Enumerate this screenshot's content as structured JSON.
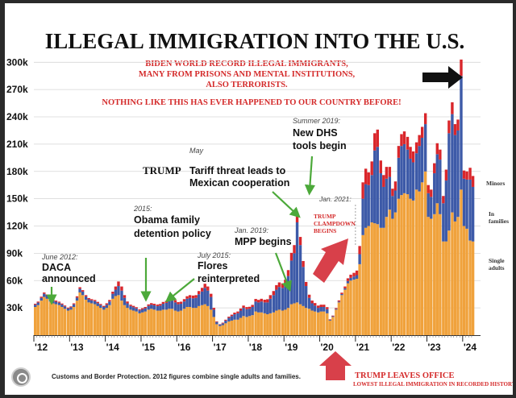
{
  "chart_data": {
    "type": "bar",
    "stacked": true,
    "title": "ILLEGAL IMMIGRATION INTO THE U.S.",
    "subtitle_lines": [
      "BIDEN WORLD RECORD ILLEGAL IMMIGRANTS,",
      "MANY FROM PRISONS AND MENTAL INSTITUTIONS,",
      "ALSO TERRORISTS."
    ],
    "subtitle2": "NOTHING LIKE THIS HAS EVER HAPPENED TO OUR COUNTRY BEFORE!",
    "ylim": [
      0,
      310000
    ],
    "yticks": [
      30000,
      60000,
      90000,
      120000,
      150000,
      180000,
      210000,
      240000,
      270000,
      300000
    ],
    "ytick_labels": [
      "30k",
      "60k",
      "90k",
      "120k",
      "150k",
      "180k",
      "210k",
      "240k",
      "270k",
      "300k"
    ],
    "xlim": [
      2012.0,
      2024.5
    ],
    "xticks": [
      2012,
      2013,
      2014,
      2015,
      2016,
      2017,
      2018,
      2019,
      2020,
      2021,
      2022,
      2023,
      2024
    ],
    "xtick_labels": [
      "'12",
      "'13",
      "'14",
      "'15",
      "'16",
      "'17",
      "'18",
      "'19",
      "'20",
      "'21",
      "'22",
      "'23",
      "'24"
    ],
    "series": [
      {
        "name": "Single adults",
        "color": "#f0a23c"
      },
      {
        "name": "In families",
        "color": "#3d5aa8"
      },
      {
        "name": "Minors",
        "color": "#d9262b"
      }
    ],
    "monthly": [
      {
        "t": 2012.0,
        "v": [
          31000,
          2500,
          1000
        ]
      },
      {
        "t": 2012.08,
        "v": [
          33000,
          2800,
          1100
        ]
      },
      {
        "t": 2012.17,
        "v": [
          38000,
          3000,
          1300
        ]
      },
      {
        "t": 2012.25,
        "v": [
          42000,
          3500,
          1400
        ]
      },
      {
        "t": 2012.33,
        "v": [
          40000,
          3400,
          1300
        ]
      },
      {
        "t": 2012.42,
        "v": [
          37000,
          3000,
          1200
        ]
      },
      {
        "t": 2012.5,
        "v": [
          35000,
          2900,
          1200
        ]
      },
      {
        "t": 2012.58,
        "v": [
          34000,
          2800,
          1200
        ]
      },
      {
        "t": 2012.67,
        "v": [
          33000,
          2700,
          1100
        ]
      },
      {
        "t": 2012.75,
        "v": [
          31000,
          2700,
          1100
        ]
      },
      {
        "t": 2012.83,
        "v": [
          29000,
          2600,
          1000
        ]
      },
      {
        "t": 2012.92,
        "v": [
          27000,
          2400,
          900
        ]
      },
      {
        "t": 2013.0,
        "v": [
          28000,
          2600,
          1000
        ]
      },
      {
        "t": 2013.08,
        "v": [
          31000,
          2900,
          1100
        ]
      },
      {
        "t": 2013.17,
        "v": [
          38000,
          3300,
          1400
        ]
      },
      {
        "t": 2013.25,
        "v": [
          47000,
          4000,
          1700
        ]
      },
      {
        "t": 2013.33,
        "v": [
          44000,
          3900,
          1600
        ]
      },
      {
        "t": 2013.42,
        "v": [
          39000,
          3600,
          1400
        ]
      },
      {
        "t": 2013.5,
        "v": [
          36000,
          3400,
          1400
        ]
      },
      {
        "t": 2013.58,
        "v": [
          35000,
          3300,
          1300
        ]
      },
      {
        "t": 2013.67,
        "v": [
          34000,
          3400,
          1300
        ]
      },
      {
        "t": 2013.75,
        "v": [
          32000,
          3300,
          1300
        ]
      },
      {
        "t": 2013.83,
        "v": [
          30000,
          3100,
          1200
        ]
      },
      {
        "t": 2013.92,
        "v": [
          28000,
          3000,
          1200
        ]
      },
      {
        "t": 2014.0,
        "v": [
          30000,
          3500,
          1500
        ]
      },
      {
        "t": 2014.08,
        "v": [
          33000,
          4000,
          1700
        ]
      },
      {
        "t": 2014.17,
        "v": [
          40000,
          5500,
          2300
        ]
      },
      {
        "t": 2014.25,
        "v": [
          43000,
          7000,
          3500
        ]
      },
      {
        "t": 2014.33,
        "v": [
          44000,
          10000,
          5000
        ]
      },
      {
        "t": 2014.42,
        "v": [
          38000,
          11000,
          4500
        ]
      },
      {
        "t": 2014.5,
        "v": [
          33000,
          8000,
          3000
        ]
      },
      {
        "t": 2014.58,
        "v": [
          30000,
          5000,
          2000
        ]
      },
      {
        "t": 2014.67,
        "v": [
          28000,
          4000,
          1500
        ]
      },
      {
        "t": 2014.75,
        "v": [
          27000,
          3800,
          1400
        ]
      },
      {
        "t": 2014.83,
        "v": [
          26000,
          3500,
          1300
        ]
      },
      {
        "t": 2014.92,
        "v": [
          24000,
          3200,
          1200
        ]
      },
      {
        "t": 2015.0,
        "v": [
          25000,
          3300,
          1300
        ]
      },
      {
        "t": 2015.08,
        "v": [
          26000,
          3600,
          1400
        ]
      },
      {
        "t": 2015.17,
        "v": [
          28000,
          4200,
          1600
        ]
      },
      {
        "t": 2015.25,
        "v": [
          29000,
          4500,
          1700
        ]
      },
      {
        "t": 2015.33,
        "v": [
          28000,
          4800,
          1700
        ]
      },
      {
        "t": 2015.42,
        "v": [
          27000,
          5000,
          1700
        ]
      },
      {
        "t": 2015.5,
        "v": [
          27000,
          5500,
          1800
        ]
      },
      {
        "t": 2015.58,
        "v": [
          28000,
          6500,
          2000
        ]
      },
      {
        "t": 2015.67,
        "v": [
          28000,
          7500,
          2300
        ]
      },
      {
        "t": 2015.75,
        "v": [
          29000,
          8500,
          2500
        ]
      },
      {
        "t": 2015.83,
        "v": [
          29000,
          9000,
          2700
        ]
      },
      {
        "t": 2015.92,
        "v": [
          27000,
          9000,
          2500
        ]
      },
      {
        "t": 2016.0,
        "v": [
          26000,
          8000,
          2300
        ]
      },
      {
        "t": 2016.08,
        "v": [
          27000,
          7500,
          2300
        ]
      },
      {
        "t": 2016.17,
        "v": [
          29000,
          8000,
          2600
        ]
      },
      {
        "t": 2016.25,
        "v": [
          31000,
          9000,
          2800
        ]
      },
      {
        "t": 2016.33,
        "v": [
          31000,
          10000,
          3000
        ]
      },
      {
        "t": 2016.42,
        "v": [
          30000,
          10500,
          3000
        ]
      },
      {
        "t": 2016.5,
        "v": [
          30000,
          11000,
          3000
        ]
      },
      {
        "t": 2016.58,
        "v": [
          32000,
          13000,
          3500
        ]
      },
      {
        "t": 2016.67,
        "v": [
          33000,
          15000,
          4000
        ]
      },
      {
        "t": 2016.75,
        "v": [
          34000,
          18000,
          4500
        ]
      },
      {
        "t": 2016.83,
        "v": [
          32000,
          17000,
          4500
        ]
      },
      {
        "t": 2016.92,
        "v": [
          28000,
          14000,
          3500
        ]
      },
      {
        "t": 2017.0,
        "v": [
          20000,
          8000,
          2000
        ]
      },
      {
        "t": 2017.08,
        "v": [
          12000,
          2500,
          700
        ]
      },
      {
        "t": 2017.17,
        "v": [
          10000,
          1500,
          500
        ]
      },
      {
        "t": 2017.25,
        "v": [
          11000,
          2000,
          700
        ]
      },
      {
        "t": 2017.33,
        "v": [
          13000,
          3000,
          1000
        ]
      },
      {
        "t": 2017.42,
        "v": [
          15000,
          4000,
          1300
        ]
      },
      {
        "t": 2017.5,
        "v": [
          16000,
          5000,
          1500
        ]
      },
      {
        "t": 2017.58,
        "v": [
          17000,
          6000,
          1800
        ]
      },
      {
        "t": 2017.67,
        "v": [
          17000,
          7000,
          2000
        ]
      },
      {
        "t": 2017.75,
        "v": [
          19000,
          8000,
          2300
        ]
      },
      {
        "t": 2017.83,
        "v": [
          21000,
          9000,
          2500
        ]
      },
      {
        "t": 2017.92,
        "v": [
          20000,
          8500,
          2400
        ]
      },
      {
        "t": 2018.0,
        "v": [
          21000,
          8000,
          2200
        ]
      },
      {
        "t": 2018.08,
        "v": [
          22000,
          9000,
          2300
        ]
      },
      {
        "t": 2018.17,
        "v": [
          26000,
          11000,
          2800
        ]
      },
      {
        "t": 2018.25,
        "v": [
          25000,
          11000,
          2800
        ]
      },
      {
        "t": 2018.33,
        "v": [
          25000,
          12000,
          3000
        ]
      },
      {
        "t": 2018.42,
        "v": [
          24000,
          12000,
          3000
        ]
      },
      {
        "t": 2018.5,
        "v": [
          23000,
          13000,
          3500
        ]
      },
      {
        "t": 2018.58,
        "v": [
          24000,
          16000,
          4000
        ]
      },
      {
        "t": 2018.67,
        "v": [
          25000,
          19000,
          4500
        ]
      },
      {
        "t": 2018.75,
        "v": [
          27000,
          23000,
          5000
        ]
      },
      {
        "t": 2018.83,
        "v": [
          28000,
          25000,
          5000
        ]
      },
      {
        "t": 2018.92,
        "v": [
          27000,
          25000,
          5000
        ]
      },
      {
        "t": 2019.0,
        "v": [
          28000,
          28000,
          5000
        ]
      },
      {
        "t": 2019.08,
        "v": [
          30000,
          35000,
          6500
        ]
      },
      {
        "t": 2019.17,
        "v": [
          34000,
          48000,
          8500
        ]
      },
      {
        "t": 2019.25,
        "v": [
          35000,
          55000,
          9000
        ]
      },
      {
        "t": 2019.33,
        "v": [
          36000,
          88000,
          11000
        ]
      },
      {
        "t": 2019.42,
        "v": [
          34000,
          65000,
          9000
        ]
      },
      {
        "t": 2019.5,
        "v": [
          32000,
          43000,
          6500
        ]
      },
      {
        "t": 2019.58,
        "v": [
          30000,
          24000,
          4500
        ]
      },
      {
        "t": 2019.67,
        "v": [
          29000,
          12000,
          3500
        ]
      },
      {
        "t": 2019.75,
        "v": [
          27000,
          8000,
          3000
        ]
      },
      {
        "t": 2019.83,
        "v": [
          26000,
          6500,
          2800
        ]
      },
      {
        "t": 2019.92,
        "v": [
          25000,
          5000,
          2500
        ]
      },
      {
        "t": 2020.0,
        "v": [
          26000,
          5000,
          2500
        ]
      },
      {
        "t": 2020.08,
        "v": [
          26000,
          5000,
          2500
        ]
      },
      {
        "t": 2020.17,
        "v": [
          24000,
          4500,
          2300
        ]
      },
      {
        "t": 2020.25,
        "v": [
          16000,
          800,
          600
        ]
      },
      {
        "t": 2020.33,
        "v": [
          20000,
          800,
          700
        ]
      },
      {
        "t": 2020.42,
        "v": [
          28000,
          900,
          900
        ]
      },
      {
        "t": 2020.5,
        "v": [
          36000,
          1000,
          1200
        ]
      },
      {
        "t": 2020.58,
        "v": [
          44000,
          1200,
          1500
        ]
      },
      {
        "t": 2020.67,
        "v": [
          50000,
          1500,
          2000
        ]
      },
      {
        "t": 2020.75,
        "v": [
          57000,
          2500,
          3000
        ]
      },
      {
        "t": 2020.83,
        "v": [
          60000,
          3000,
          3500
        ]
      },
      {
        "t": 2020.92,
        "v": [
          61000,
          3500,
          4000
        ]
      },
      {
        "t": 2021.0,
        "v": [
          62000,
          4000,
          5000
        ]
      },
      {
        "t": 2021.08,
        "v": [
          78000,
          11000,
          9000
        ]
      },
      {
        "t": 2021.17,
        "v": [
          110000,
          40000,
          18000
        ]
      },
      {
        "t": 2021.25,
        "v": [
          118000,
          48000,
          17000
        ]
      },
      {
        "t": 2021.33,
        "v": [
          120000,
          45000,
          14000
        ]
      },
      {
        "t": 2021.42,
        "v": [
          124000,
          52000,
          15000
        ]
      },
      {
        "t": 2021.5,
        "v": [
          123000,
          80000,
          19000
        ]
      },
      {
        "t": 2021.58,
        "v": [
          122000,
          85000,
          19000
        ]
      },
      {
        "t": 2021.67,
        "v": [
          118000,
          60000,
          14000
        ]
      },
      {
        "t": 2021.75,
        "v": [
          118000,
          45000,
          13000
        ]
      },
      {
        "t": 2021.83,
        "v": [
          130000,
          42000,
          13000
        ]
      },
      {
        "t": 2021.92,
        "v": [
          138000,
          36000,
          11000
        ]
      },
      {
        "t": 2022.0,
        "v": [
          128000,
          25000,
          8000
        ]
      },
      {
        "t": 2022.08,
        "v": [
          135000,
          24000,
          10000
        ]
      },
      {
        "t": 2022.17,
        "v": [
          150000,
          45000,
          13000
        ]
      },
      {
        "t": 2022.25,
        "v": [
          154000,
          54000,
          13000
        ]
      },
      {
        "t": 2022.33,
        "v": [
          156000,
          54000,
          14000
        ]
      },
      {
        "t": 2022.42,
        "v": [
          155000,
          49000,
          14000
        ]
      },
      {
        "t": 2022.5,
        "v": [
          150000,
          44000,
          13000
        ]
      },
      {
        "t": 2022.58,
        "v": [
          148000,
          42000,
          12000
        ]
      },
      {
        "t": 2022.67,
        "v": [
          160000,
          40000,
          12000
        ]
      },
      {
        "t": 2022.75,
        "v": [
          158000,
          50000,
          12000
        ]
      },
      {
        "t": 2022.83,
        "v": [
          168000,
          49000,
          12000
        ]
      },
      {
        "t": 2022.92,
        "v": [
          180000,
          52000,
          12000
        ]
      },
      {
        "t": 2023.0,
        "v": [
          130000,
          26000,
          9000
        ]
      },
      {
        "t": 2023.08,
        "v": [
          128000,
          24000,
          8000
        ]
      },
      {
        "t": 2023.17,
        "v": [
          133000,
          45000,
          11000
        ]
      },
      {
        "t": 2023.25,
        "v": [
          145000,
          54000,
          12000
        ]
      },
      {
        "t": 2023.33,
        "v": [
          133000,
          60000,
          11000
        ]
      },
      {
        "t": 2023.42,
        "v": [
          103000,
          42000,
          8000
        ]
      },
      {
        "t": 2023.5,
        "v": [
          103000,
          67000,
          12000
        ]
      },
      {
        "t": 2023.58,
        "v": [
          115000,
          107000,
          14000
        ]
      },
      {
        "t": 2023.67,
        "v": [
          135000,
          108000,
          13000
        ]
      },
      {
        "t": 2023.75,
        "v": [
          125000,
          95000,
          12000
        ]
      },
      {
        "t": 2023.83,
        "v": [
          130000,
          95000,
          12000
        ]
      },
      {
        "t": 2023.92,
        "v": [
          160000,
          125000,
          18000
        ]
      },
      {
        "t": 2024.0,
        "v": [
          120000,
          52000,
          9000
        ]
      },
      {
        "t": 2024.08,
        "v": [
          117000,
          54000,
          9000
        ]
      },
      {
        "t": 2024.17,
        "v": [
          104000,
          67000,
          13000
        ]
      },
      {
        "t": 2024.25,
        "v": [
          103000,
          60000,
          12000
        ]
      }
    ],
    "legend_labels": [
      {
        "series": "Minors",
        "lines": [
          "Minors"
        ]
      },
      {
        "series": "In families",
        "lines": [
          "In",
          "families"
        ]
      },
      {
        "series": "Single adults",
        "lines": [
          "Single",
          "adults"
        ]
      }
    ],
    "annotations": [
      {
        "key": "daca",
        "note": "June 2012:",
        "lines": [
          "DACA",
          "announced"
        ]
      },
      {
        "key": "obama",
        "note": "2015:",
        "lines": [
          "Obama family",
          "detention policy"
        ]
      },
      {
        "key": "flores",
        "note": "July 2015:",
        "lines": [
          "Flores",
          "reinterpreted"
        ]
      },
      {
        "key": "tariff",
        "note": "May",
        "bold": "TRUMP",
        "lines": [
          "Tariff threat leads to",
          "Mexican cooperation"
        ]
      },
      {
        "key": "mpp",
        "note": "Jan. 2019:",
        "lines": [
          "MPP begins"
        ]
      },
      {
        "key": "dhs",
        "note": "Summer 2019:",
        "lines": [
          "New DHS",
          "tools begin"
        ]
      },
      {
        "key": "jan2021",
        "note": "Jan. 2021:",
        "lines": []
      },
      {
        "key": "clampdown",
        "note": "",
        "lines": [
          "TRUMP",
          "CLAMPDOWN",
          "BEGINS"
        ]
      },
      {
        "key": "leaves",
        "note": "",
        "lines": [
          "TRUMP LEAVES OFFICE",
          "LOWEST ILLEGAL IMMIGRATION IN RECORDED HISTORY!"
        ]
      }
    ],
    "source": "Customs and Border Protection. 2012 figures combine single adults and families."
  }
}
